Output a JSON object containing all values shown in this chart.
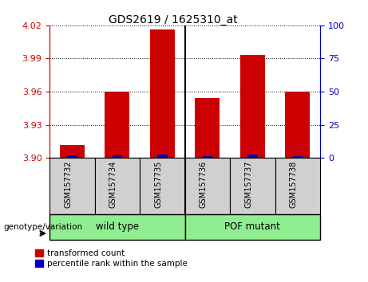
{
  "title": "GDS2619 / 1625310_at",
  "samples": [
    "GSM157732",
    "GSM157734",
    "GSM157735",
    "GSM157736",
    "GSM157737",
    "GSM157738"
  ],
  "red_values": [
    3.912,
    3.96,
    4.016,
    3.954,
    3.993,
    3.96
  ],
  "blue_values": [
    2.0,
    2.0,
    2.5,
    1.5,
    2.5,
    1.5
  ],
  "ylim_left": [
    3.9,
    4.02
  ],
  "yticks_left": [
    3.9,
    3.93,
    3.96,
    3.99,
    4.02
  ],
  "ylim_right": [
    0,
    100
  ],
  "yticks_right": [
    0,
    25,
    50,
    75,
    100
  ],
  "bar_width": 0.55,
  "red_color": "#CC0000",
  "blue_color": "#0000BB",
  "left_axis_color": "#CC0000",
  "right_axis_color": "#0000BB",
  "plot_bg": "#ffffff",
  "legend_red_label": "transformed count",
  "legend_blue_label": "percentile rank within the sample",
  "genotype_label": "genotype/variation",
  "wild_type_label": "wild type",
  "pof_label": "POF mutant",
  "group_bg_color": "#90EE90",
  "sample_box_color": "#d0d0d0",
  "grid_color": "black",
  "grid_style": "dotted"
}
